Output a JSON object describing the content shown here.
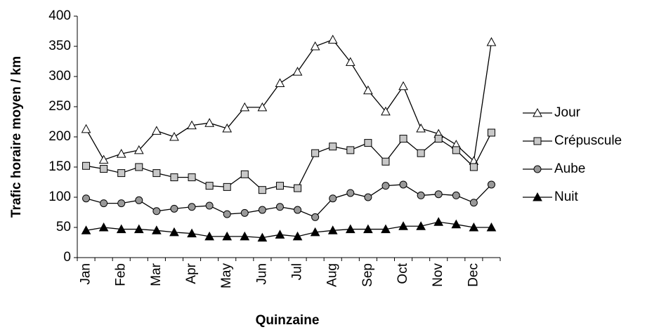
{
  "chart_data": {
    "type": "line",
    "x_label": "Quinzaine",
    "y_label": "Trafic horaire moyen / km",
    "categories": [
      "Jan",
      null,
      "Feb",
      null,
      "Mar",
      null,
      "Apr",
      null,
      "May",
      null,
      "Jun",
      null,
      "Jul",
      null,
      "Aug",
      null,
      "Sep",
      null,
      "Oct",
      null,
      "Nov",
      null,
      "Dec",
      null
    ],
    "series": [
      {
        "name": "Jour",
        "color": "#000000",
        "marker": "triangle",
        "marker_fill": "#ffffff",
        "values": [
          213,
          162,
          172,
          178,
          210,
          200,
          219,
          223,
          214,
          249,
          249,
          289,
          308,
          350,
          361,
          324,
          277,
          242,
          284,
          214,
          205,
          187,
          160,
          357
        ]
      },
      {
        "name": "Crépuscule",
        "color": "#000000",
        "marker": "square",
        "marker_fill": "#c8c8c8",
        "values": [
          152,
          147,
          140,
          150,
          140,
          133,
          133,
          119,
          117,
          138,
          112,
          119,
          115,
          173,
          184,
          178,
          190,
          159,
          197,
          173,
          197,
          178,
          150,
          207
        ]
      },
      {
        "name": "Aube",
        "color": "#000000",
        "marker": "circle",
        "marker_fill": "#999999",
        "values": [
          98,
          90,
          90,
          95,
          77,
          81,
          84,
          86,
          72,
          74,
          79,
          84,
          79,
          67,
          98,
          107,
          100,
          119,
          121,
          103,
          105,
          103,
          91,
          121
        ]
      },
      {
        "name": "Nuit",
        "color": "#000000",
        "marker": "triangle",
        "marker_fill": "#000000",
        "values": [
          45,
          50,
          47,
          47,
          45,
          42,
          40,
          35,
          35,
          35,
          33,
          38,
          35,
          42,
          45,
          47,
          47,
          47,
          52,
          52,
          59,
          55,
          50,
          50
        ]
      }
    ],
    "ylim": [
      0,
      400
    ],
    "yticks": [
      0,
      50,
      100,
      150,
      200,
      250,
      300,
      350,
      400
    ],
    "grid": false,
    "legend": "right"
  }
}
